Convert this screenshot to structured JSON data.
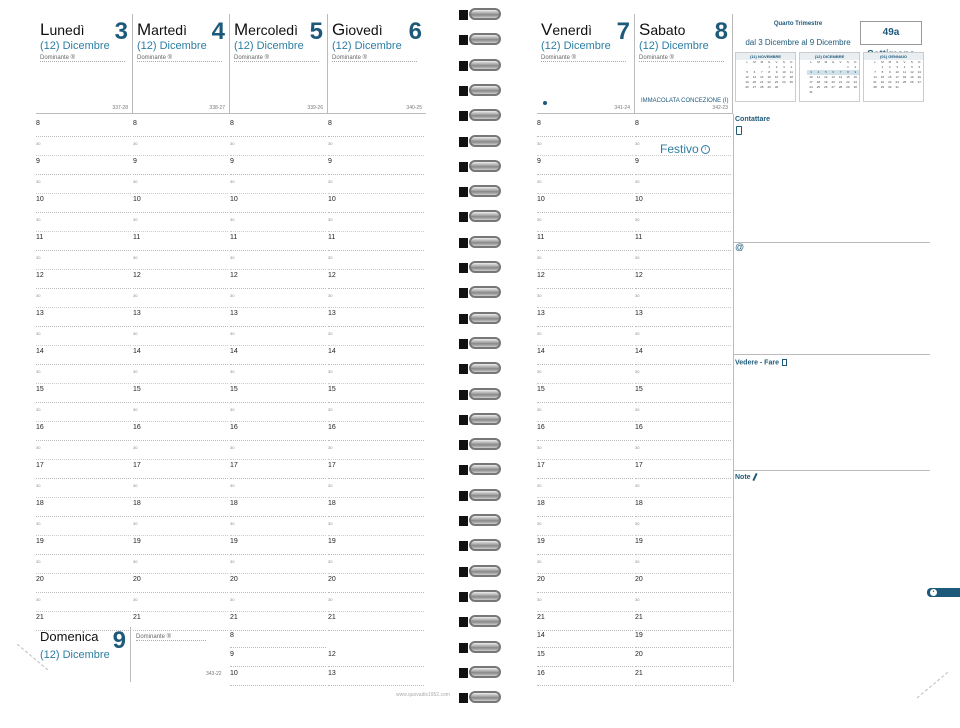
{
  "left_days": [
    {
      "name": "Lunedì",
      "num": "3",
      "month": "(12) Dicembre",
      "dominante": "Dominante ®",
      "code": "337-28"
    },
    {
      "name": "Martedì",
      "num": "4",
      "month": "(12) Dicembre",
      "dominante": "Dominante ®",
      "code": "338-27"
    },
    {
      "name": "Mercoledì",
      "num": "5",
      "month": "(12) Dicembre",
      "dominante": "Dominante ®",
      "code": "339-26"
    },
    {
      "name": "Giovedì",
      "num": "6",
      "month": "(12) Dicembre",
      "dominante": "Dominante ®",
      "code": "340-25"
    }
  ],
  "right_days": [
    {
      "name": "Venerdì",
      "num": "7",
      "month": "(12) Dicembre",
      "dominante": "Dominante ®",
      "code": "341-24"
    },
    {
      "name": "Sabato",
      "num": "8",
      "month": "(12) Dicembre",
      "dominante": "Dominante ®",
      "code": "342-23",
      "holiday": "IMMACOLATA CONCEZIONE (I)"
    }
  ],
  "hours": [
    "8",
    "9",
    "10",
    "11",
    "12",
    "13",
    "14",
    "15",
    "16",
    "17",
    "18",
    "19",
    "20",
    "21"
  ],
  "half_label": "30",
  "festivo": "Festivo",
  "sunday": {
    "name": "Domenica",
    "num": "9",
    "month": "(12) Dicembre",
    "dominante": "Dominante ®",
    "code": "343-22",
    "hours": [
      "8",
      "9",
      "10"
    ]
  },
  "sat_extra_hours": [
    "12",
    "13"
  ],
  "right_extra_hours": [
    "14",
    "15",
    "16"
  ],
  "right_extra_hours2": [
    "19",
    "20",
    "21"
  ],
  "quarter": {
    "title": "Quarto Trimestre",
    "range": "dal 3 Dicembre al 9 Dicembre",
    "week": "49a Settimana"
  },
  "mini_cals": [
    {
      "title": "(11) NOVEMBRE"
    },
    {
      "title": "(12) DICEMBRE"
    },
    {
      "title": "(01) GENNAIO"
    }
  ],
  "weekday_letters": [
    "L",
    "M",
    "M",
    "G",
    "V",
    "S",
    "D"
  ],
  "sections": {
    "contattare": "Contattare",
    "vedere": "Vedere - Fare",
    "note": "Note"
  },
  "footer": "www.quovadis1952.com",
  "colors": {
    "accent": "#1d5a7a",
    "secondary": "#2c7ea3"
  }
}
